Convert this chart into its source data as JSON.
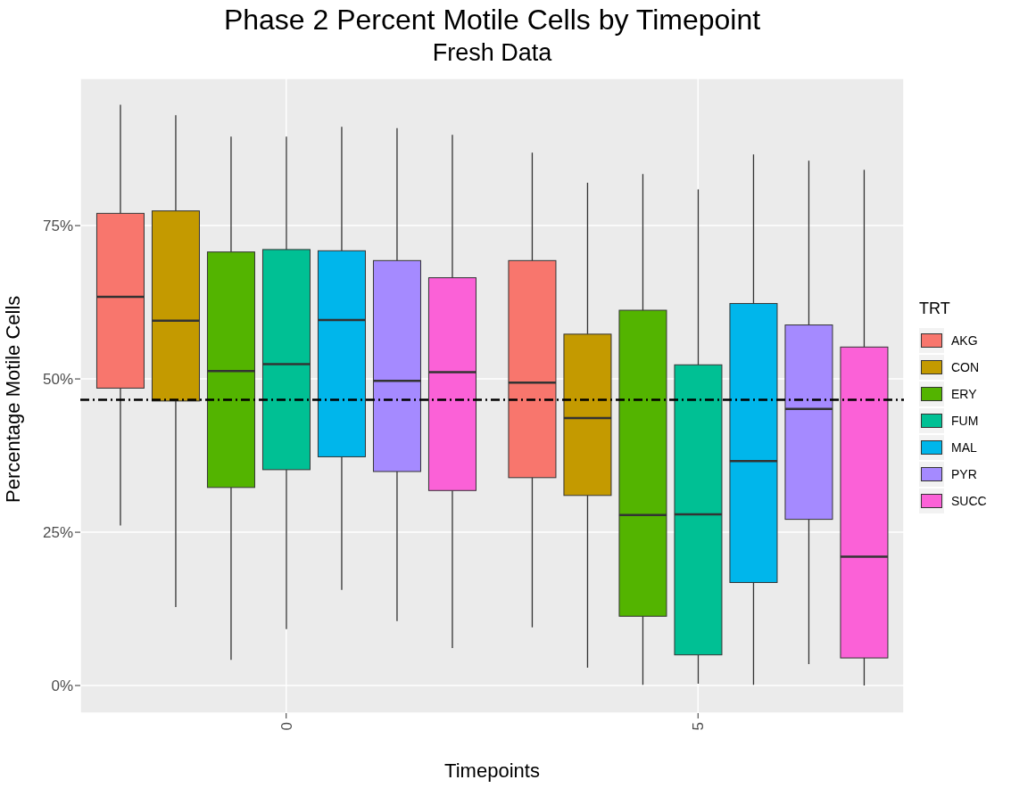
{
  "chart_data": {
    "type": "box",
    "title": "Phase 2 Percent Motile Cells by Timepoint",
    "subtitle": "Fresh Data",
    "xlabel": "Timepoints",
    "ylabel": "Percentage Motile Cells",
    "legend_title": "TRT",
    "categories": [
      "0",
      "5"
    ],
    "series": [
      {
        "name": "AKG",
        "color": "#f8766d",
        "boxes": [
          {
            "low": 26.1,
            "q1": 48.5,
            "median": 63.4,
            "q3": 77.0,
            "high": 94.7
          },
          {
            "low": 9.5,
            "q1": 33.9,
            "median": 49.4,
            "q3": 69.3,
            "high": 86.9
          }
        ]
      },
      {
        "name": "CON",
        "color": "#c49a00",
        "boxes": [
          {
            "low": 12.8,
            "q1": 46.4,
            "median": 59.5,
            "q3": 77.4,
            "high": 93.0
          },
          {
            "low": 2.9,
            "q1": 31.0,
            "median": 43.6,
            "q3": 57.3,
            "high": 82.0
          }
        ]
      },
      {
        "name": "ERY",
        "color": "#53b400",
        "boxes": [
          {
            "low": 4.2,
            "q1": 32.3,
            "median": 51.3,
            "q3": 70.7,
            "high": 89.5
          },
          {
            "low": 0.1,
            "q1": 11.3,
            "median": 27.8,
            "q3": 61.2,
            "high": 83.4
          }
        ]
      },
      {
        "name": "FUM",
        "color": "#00c094",
        "boxes": [
          {
            "low": 9.2,
            "q1": 35.2,
            "median": 52.4,
            "q3": 71.1,
            "high": 89.5
          },
          {
            "low": 0.3,
            "q1": 5.0,
            "median": 27.9,
            "q3": 52.3,
            "high": 80.9
          }
        ]
      },
      {
        "name": "MAL",
        "color": "#00b6eb",
        "boxes": [
          {
            "low": 15.6,
            "q1": 37.3,
            "median": 59.6,
            "q3": 70.9,
            "high": 91.1
          },
          {
            "low": 0.1,
            "q1": 16.8,
            "median": 36.6,
            "q3": 62.3,
            "high": 86.6
          }
        ]
      },
      {
        "name": "PYR",
        "color": "#a58aff",
        "boxes": [
          {
            "low": 10.5,
            "q1": 34.9,
            "median": 49.7,
            "q3": 69.3,
            "high": 90.9
          },
          {
            "low": 3.5,
            "q1": 27.1,
            "median": 45.1,
            "q3": 58.8,
            "high": 85.6
          }
        ]
      },
      {
        "name": "SUCC",
        "color": "#fb61d7",
        "boxes": [
          {
            "low": 6.1,
            "q1": 31.8,
            "median": 51.1,
            "q3": 66.5,
            "high": 89.8
          },
          {
            "low": 0,
            "q1": 4.5,
            "median": 21.0,
            "q3": 55.2,
            "high": 84.1
          }
        ]
      }
    ],
    "ylim": [
      -4.5,
      99
    ],
    "yticks": [
      {
        "value": 0,
        "label": "0%"
      },
      {
        "value": 25,
        "label": "25%"
      },
      {
        "value": 50,
        "label": "50%"
      },
      {
        "value": 75,
        "label": "75%"
      }
    ],
    "ref_lines": [
      {
        "axis": "y",
        "value": 46.6,
        "line_style": "dashed",
        "color": "#000000"
      }
    ],
    "grid": true,
    "legend": "right"
  }
}
